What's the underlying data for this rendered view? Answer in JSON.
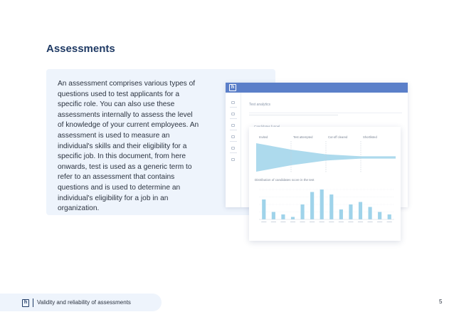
{
  "page": {
    "title": "Assessments",
    "body": "An assessment comprises various types of questions used to test applicants for a specific role. You can also use these assessments internally to assess the level of knowledge of your current employees. An assessment is used to measure an individual's skills and their eligibility for a specific job. In this document, from here onwards, test is used as a generic term to refer to an assessment that contains questions and is used to determine an individual's eligibility for a job in an organization."
  },
  "footer": {
    "logo_letter": "h",
    "text": "Validity and reliability of assessments",
    "page_number": "5"
  },
  "app": {
    "logo_letter": "h",
    "heading": "Test analytics",
    "section_label": "Candidates funnel",
    "bar_color": "#5b7fc9"
  },
  "chart_card": {
    "funnel_stages": [
      "Invited",
      "Test attempted",
      "Cut-off cleared",
      "Shortlisted"
    ],
    "funnel_widths": [
      1.0,
      0.55,
      0.22,
      0.08
    ],
    "distribution_title": "Distribution of candidates score in the test",
    "bar_color": "#9fd3ea"
  },
  "chart_data": {
    "type": "bar",
    "values": [
      8,
      3,
      2,
      1,
      6,
      11,
      12,
      10,
      4,
      6,
      7,
      5,
      3,
      2
    ],
    "bar_color": "#9fd3ea"
  }
}
